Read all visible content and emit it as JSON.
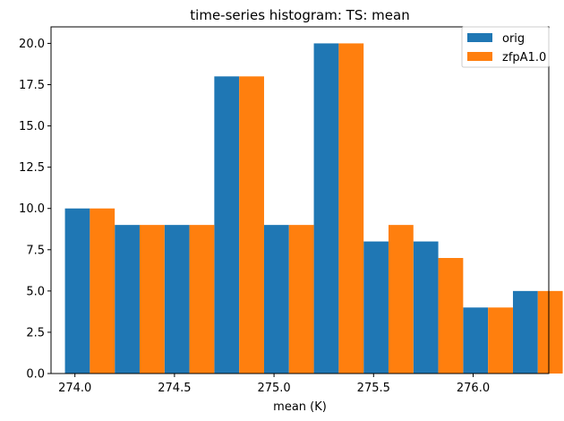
{
  "chart_data": {
    "type": "bar",
    "title": "time-series histogram: TS: mean",
    "xlabel": "mean (K)",
    "ylabel": "",
    "bin_edges": [
      273.95,
      274.2,
      274.45,
      274.7,
      274.95,
      275.2,
      275.45,
      275.7,
      275.95,
      276.2,
      276.45
    ],
    "series": [
      {
        "name": "orig",
        "color": "#1f77b4",
        "values": [
          10,
          9,
          9,
          18,
          9,
          20,
          8,
          8,
          4,
          5
        ]
      },
      {
        "name": "zfpA1.0",
        "color": "#ff7f0e",
        "values": [
          10,
          9,
          9,
          18,
          9,
          20,
          9,
          7,
          4,
          5
        ]
      }
    ],
    "xlim": [
      273.88,
      276.38
    ],
    "ylim": [
      0,
      21
    ],
    "x_ticks": [
      {
        "value": 274.0,
        "label": "274.0"
      },
      {
        "value": 274.5,
        "label": "274.5"
      },
      {
        "value": 275.0,
        "label": "275.0"
      },
      {
        "value": 275.5,
        "label": "275.5"
      },
      {
        "value": 276.0,
        "label": "276.0"
      }
    ],
    "y_ticks": [
      {
        "value": 0,
        "label": "0.0"
      },
      {
        "value": 2.5,
        "label": "2.5"
      },
      {
        "value": 5,
        "label": "5.0"
      },
      {
        "value": 7.5,
        "label": "7.5"
      },
      {
        "value": 10,
        "label": "10.0"
      },
      {
        "value": 12.5,
        "label": "12.5"
      },
      {
        "value": 15,
        "label": "15.0"
      },
      {
        "value": 17.5,
        "label": "17.5"
      },
      {
        "value": 20,
        "label": "20.0"
      }
    ],
    "grid": false,
    "legend_position": "top-right"
  }
}
